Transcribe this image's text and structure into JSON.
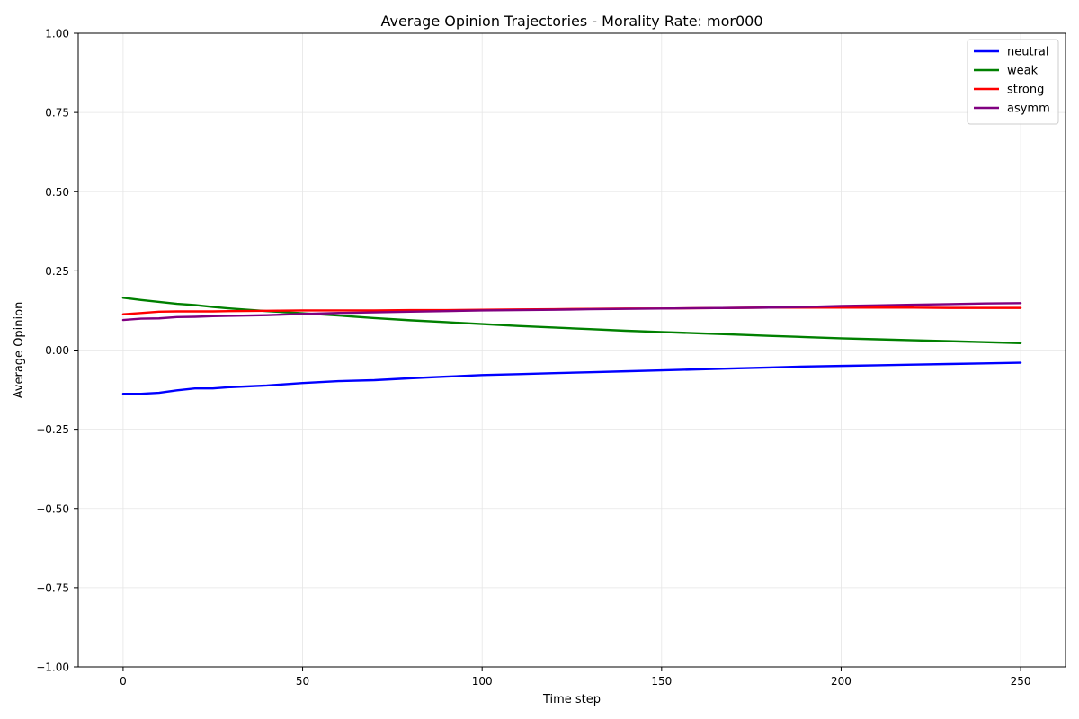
{
  "chart_data": {
    "type": "line",
    "title": "Average Opinion Trajectories - Morality Rate: mor000",
    "xlabel": "Time step",
    "ylabel": "Average Opinion",
    "xlim": [
      -12.5,
      262.5
    ],
    "ylim": [
      -1.0,
      1.0
    ],
    "xticks": [
      0,
      50,
      100,
      150,
      200,
      250
    ],
    "xtick_labels": [
      "0",
      "50",
      "100",
      "150",
      "200",
      "250"
    ],
    "yticks": [
      -1.0,
      -0.75,
      -0.5,
      -0.25,
      0.0,
      0.25,
      0.5,
      0.75,
      1.0
    ],
    "ytick_labels": [
      "−1.00",
      "−0.75",
      "−0.50",
      "−0.25",
      "0.00",
      "0.25",
      "0.50",
      "0.75",
      "1.00"
    ],
    "grid": true,
    "legend_position": "top-right",
    "x": [
      0,
      5,
      10,
      15,
      20,
      25,
      30,
      40,
      50,
      60,
      70,
      80,
      90,
      100,
      110,
      120,
      130,
      140,
      150,
      160,
      170,
      180,
      190,
      200,
      210,
      220,
      230,
      240,
      250
    ],
    "series": [
      {
        "name": "neutral",
        "color": "#0000ff",
        "values": [
          -0.138,
          -0.138,
          -0.135,
          -0.127,
          -0.121,
          -0.121,
          -0.117,
          -0.112,
          -0.104,
          -0.098,
          -0.095,
          -0.089,
          -0.084,
          -0.079,
          -0.076,
          -0.073,
          -0.07,
          -0.067,
          -0.064,
          -0.061,
          -0.058,
          -0.055,
          -0.052,
          -0.05,
          -0.048,
          -0.046,
          -0.044,
          -0.042,
          -0.04
        ]
      },
      {
        "name": "weak",
        "color": "#008000",
        "values": [
          0.165,
          0.158,
          0.152,
          0.146,
          0.142,
          0.136,
          0.131,
          0.123,
          0.116,
          0.109,
          0.101,
          0.094,
          0.088,
          0.082,
          0.076,
          0.071,
          0.066,
          0.061,
          0.057,
          0.053,
          0.049,
          0.045,
          0.041,
          0.037,
          0.034,
          0.031,
          0.028,
          0.025,
          0.022
        ]
      },
      {
        "name": "strong",
        "color": "#ff0000",
        "values": [
          0.113,
          0.117,
          0.121,
          0.122,
          0.122,
          0.122,
          0.123,
          0.124,
          0.125,
          0.125,
          0.125,
          0.126,
          0.126,
          0.127,
          0.128,
          0.129,
          0.13,
          0.131,
          0.131,
          0.132,
          0.133,
          0.134,
          0.134,
          0.134,
          0.134,
          0.134,
          0.133,
          0.133,
          0.133
        ]
      },
      {
        "name": "asymm",
        "color": "#800080",
        "values": [
          0.095,
          0.099,
          0.1,
          0.104,
          0.105,
          0.107,
          0.108,
          0.11,
          0.114,
          0.117,
          0.119,
          0.121,
          0.123,
          0.125,
          0.126,
          0.127,
          0.129,
          0.13,
          0.131,
          0.132,
          0.133,
          0.134,
          0.136,
          0.139,
          0.141,
          0.143,
          0.145,
          0.147,
          0.148
        ]
      }
    ]
  }
}
